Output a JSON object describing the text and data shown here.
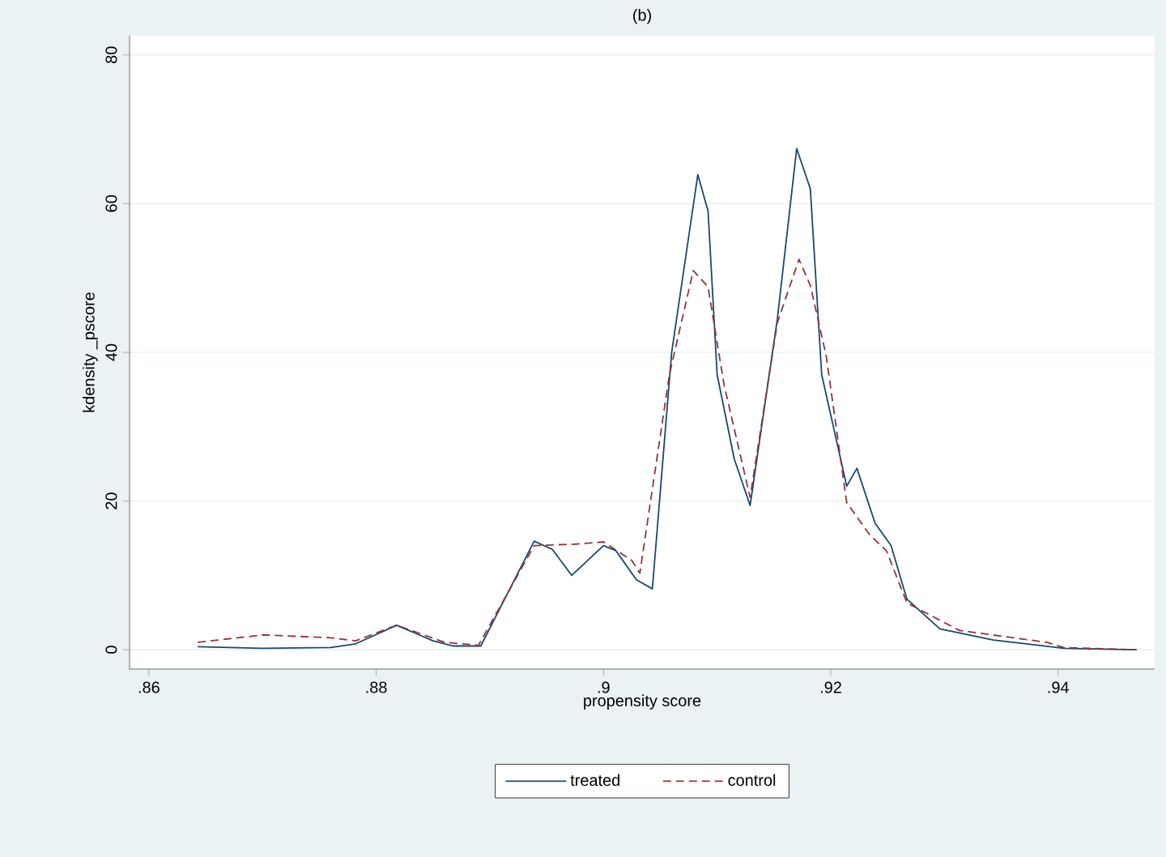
{
  "chart_data": {
    "type": "line",
    "title": "(b)",
    "xlabel": "propensity score",
    "ylabel": "kdensity _pscore",
    "xlim": [
      0.8583,
      0.9485
    ],
    "ylim": [
      -2.6,
      82.6
    ],
    "xticks": [
      {
        "value": 0.86,
        "label": ".86"
      },
      {
        "value": 0.88,
        "label": ".88"
      },
      {
        "value": 0.9,
        "label": ".9"
      },
      {
        "value": 0.92,
        "label": ".92"
      },
      {
        "value": 0.94,
        "label": ".94"
      }
    ],
    "yticks": [
      0,
      20,
      40,
      60,
      80
    ],
    "grid": "y",
    "legend": "bottom",
    "marker": "none",
    "series": [
      {
        "name": "treated",
        "color": "#1a476f",
        "line_style": "solid",
        "x": [
          0.8643,
          0.87,
          0.876,
          0.8782,
          0.8818,
          0.885,
          0.8868,
          0.8892,
          0.8939,
          0.8955,
          0.8972,
          0.9,
          0.9011,
          0.9029,
          0.9043,
          0.906,
          0.9083,
          0.9092,
          0.91,
          0.9115,
          0.9129,
          0.9153,
          0.917,
          0.9182,
          0.9192,
          0.9214,
          0.9223,
          0.9239,
          0.9253,
          0.9267,
          0.9296,
          0.9343,
          0.9405,
          0.9469
        ],
        "values": [
          0.4,
          0.2,
          0.3,
          0.8,
          3.3,
          1.2,
          0.5,
          0.5,
          14.6,
          13.5,
          10,
          14,
          13.3,
          9.4,
          8.2,
          40,
          63.9,
          59,
          37,
          25.7,
          19.4,
          44.5,
          67.4,
          62,
          37,
          22,
          24.4,
          17,
          14,
          6.8,
          2.8,
          1.3,
          0.2,
          0
        ]
      },
      {
        "name": "control",
        "color": "#90353b",
        "line_style": "dashed",
        "x": [
          0.8643,
          0.8701,
          0.876,
          0.8782,
          0.8818,
          0.886,
          0.889,
          0.8939,
          0.8975,
          0.9,
          0.9025,
          0.9032,
          0.9058,
          0.9079,
          0.9092,
          0.9106,
          0.9129,
          0.9153,
          0.9172,
          0.9182,
          0.9196,
          0.9214,
          0.9234,
          0.9249,
          0.9267,
          0.9313,
          0.939,
          0.9405,
          0.9469
        ],
        "values": [
          1,
          2.0,
          1.6,
          1.2,
          3.3,
          1,
          0.6,
          14,
          14.2,
          14.5,
          12,
          10.3,
          37,
          51,
          48.8,
          35.7,
          20.5,
          44,
          52.5,
          49,
          39.5,
          19.8,
          15.5,
          13.3,
          6.3,
          2.6,
          1,
          0.3,
          0
        ]
      }
    ]
  }
}
